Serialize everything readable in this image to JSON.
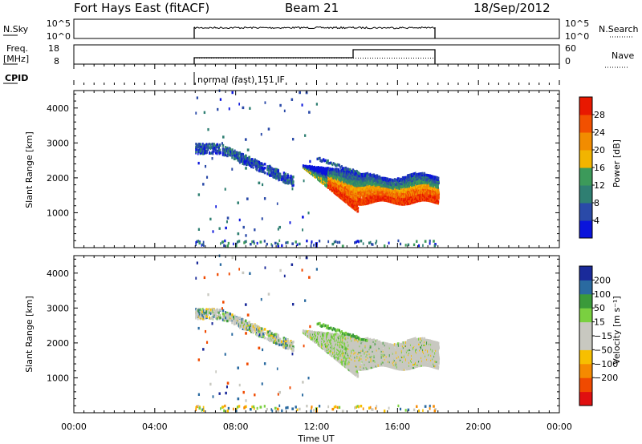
{
  "header": {
    "station": "Fort Hays East (fitACF)",
    "beam": "Beam 21",
    "date": "18/Sep/2012"
  },
  "noise_panel": {
    "left_label": "N.Sky",
    "left_ticks": [
      "10^5",
      "10^0"
    ],
    "right_ticks": [
      "10^5",
      "10^0"
    ],
    "right_label": "N.Search"
  },
  "freq_panel": {
    "left_label_1": "Freq.",
    "left_label_2": "[MHz]",
    "left_ticks": [
      "18",
      "8"
    ],
    "right_ticks": [
      "60",
      "0"
    ],
    "right_label": "Nave"
  },
  "cpid": {
    "label": "CPID",
    "program": "normal (fast) 151 IF"
  },
  "colors": {
    "power_scale": [
      "#0a14dc",
      "#2a4aa8",
      "#2f7f72",
      "#3c9a5a",
      "#f2b400",
      "#f28c00",
      "#f25000",
      "#e81800"
    ],
    "velocity_scale": [
      "#e01010",
      "#f04a00",
      "#f58a00",
      "#f7bf00",
      "#c8c8c0",
      "#c8c8c0",
      "#7ad040",
      "#3a9a3a",
      "#2a6aa0",
      "#1a2a9a"
    ]
  },
  "chart_data": [
    {
      "type": "heatmap",
      "title": "",
      "xlabel": "",
      "ylabel": "Slant Range [km]",
      "x_range_hours": [
        0,
        24
      ],
      "ylim": [
        0,
        4500
      ],
      "yticks": [
        "1000",
        "2000",
        "3000",
        "4000"
      ],
      "colorbar": {
        "label": "Power [dB]",
        "ticks": [
          "4",
          "8",
          "12",
          "16",
          "20",
          "24",
          "28"
        ],
        "range": [
          0,
          32
        ]
      }
    },
    {
      "type": "heatmap",
      "title": "",
      "xlabel": "Time UT",
      "ylabel": "Slant Range [km]",
      "x_range_hours": [
        0,
        24
      ],
      "xticks": [
        "00:00",
        "04:00",
        "08:00",
        "12:00",
        "16:00",
        "20:00",
        "00:00"
      ],
      "ylim": [
        0,
        4500
      ],
      "yticks": [
        "1000",
        "2000",
        "3000",
        "4000"
      ],
      "colorbar": {
        "label": "Velocity [m s⁻¹]",
        "ticks": [
          "200",
          "100",
          "50",
          "15",
          "−15",
          "−50",
          "−100",
          "−200"
        ]
      }
    }
  ]
}
